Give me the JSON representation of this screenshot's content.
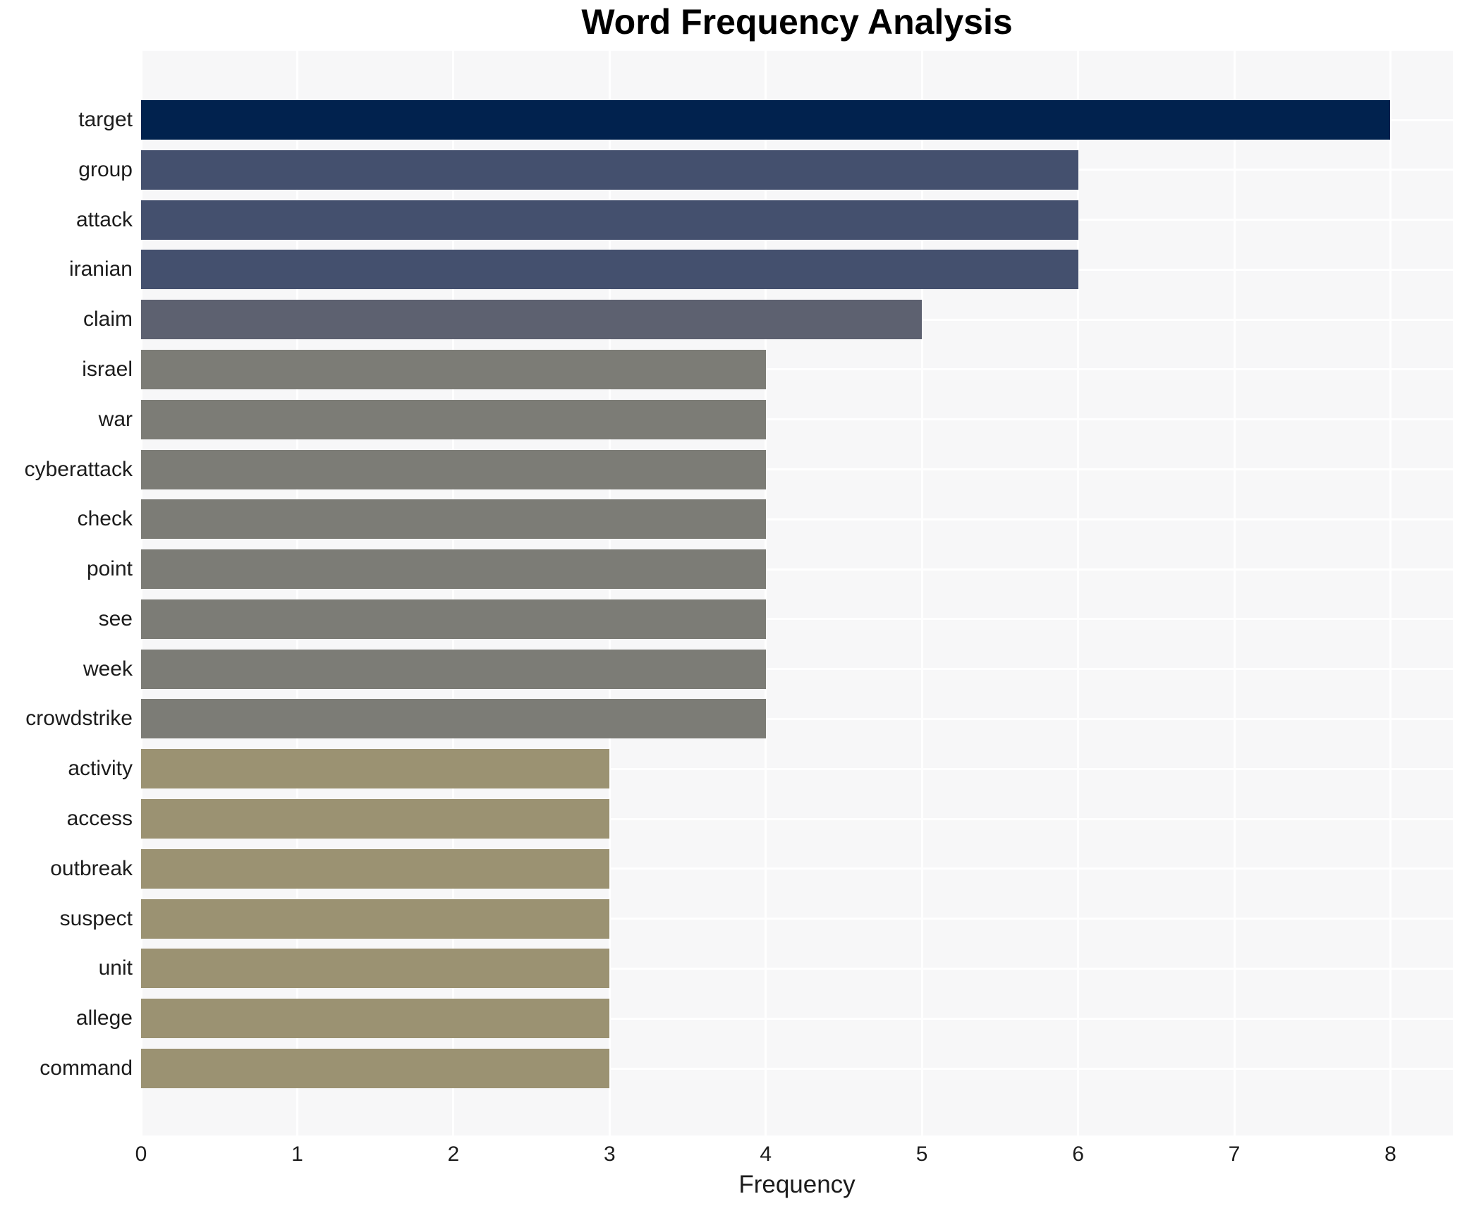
{
  "chart_data": {
    "type": "bar",
    "orientation": "horizontal",
    "title": "Word Frequency Analysis",
    "xlabel": "Frequency",
    "ylabel": "",
    "categories": [
      "target",
      "group",
      "attack",
      "iranian",
      "claim",
      "israel",
      "war",
      "cyberattack",
      "check",
      "point",
      "see",
      "week",
      "crowdstrike",
      "activity",
      "access",
      "outbreak",
      "suspect",
      "unit",
      "allege",
      "command"
    ],
    "values": [
      8,
      6,
      6,
      6,
      5,
      4,
      4,
      4,
      4,
      4,
      4,
      4,
      4,
      3,
      3,
      3,
      3,
      3,
      3,
      3
    ],
    "bar_colors": [
      "#01224e",
      "#44506e",
      "#44506e",
      "#44506e",
      "#5d6170",
      "#7c7c76",
      "#7c7c76",
      "#7c7c76",
      "#7c7c76",
      "#7c7c76",
      "#7c7c76",
      "#7c7c76",
      "#7c7c76",
      "#9b9272",
      "#9b9272",
      "#9b9272",
      "#9b9272",
      "#9b9272",
      "#9b9272",
      "#9b9272"
    ],
    "palette_by_value": {
      "8": "#01224e",
      "6": "#44506e",
      "5": "#5d6170",
      "4": "#7c7c76",
      "3": "#9b9272"
    },
    "xticks": [
      0,
      1,
      2,
      3,
      4,
      5,
      6,
      7,
      8
    ],
    "xlim": [
      0,
      8.4
    ],
    "grid": true,
    "legend": "none",
    "colors": {
      "plot_background": "#f7f7f8",
      "grid_line": "#ffffff",
      "title_text": "#000000",
      "axis_text": "#1c1c1c",
      "figure_background": "#ffffff"
    }
  }
}
